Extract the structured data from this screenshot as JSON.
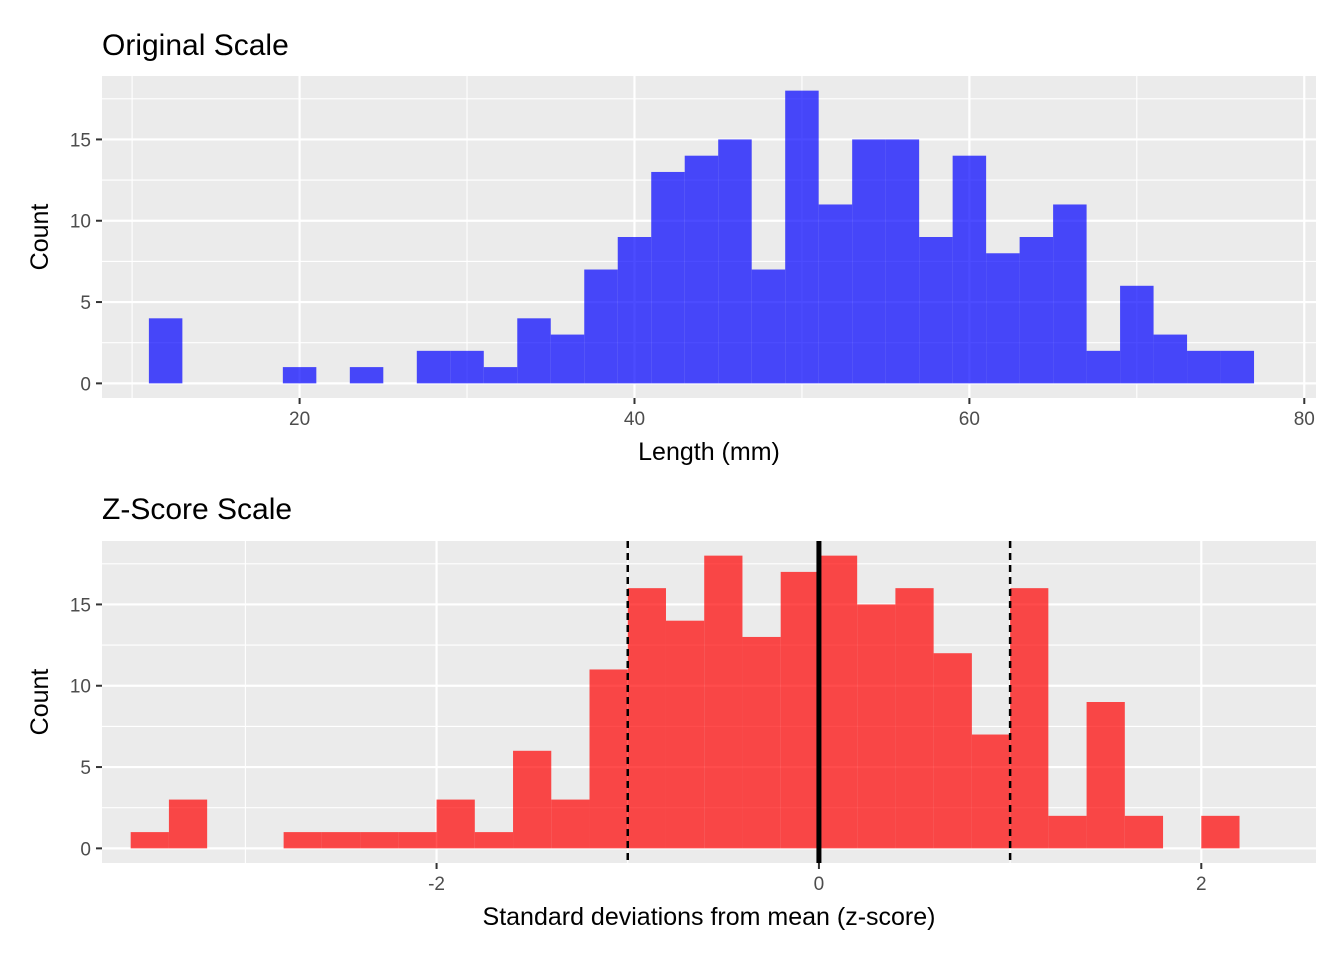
{
  "chart_data": [
    {
      "type": "bar",
      "subtype": "histogram",
      "title": "Original Scale",
      "xlabel": "Length (mm)",
      "ylabel": "Count",
      "color": "#0000FF",
      "opacity": 0.7,
      "bin_width": 2,
      "xlim": [
        8.2,
        80.7
      ],
      "ylim": [
        -0.9,
        18.9
      ],
      "x_ticks": [
        20,
        40,
        60,
        80
      ],
      "x_tick_labels": [
        "20",
        "40",
        "60",
        "80"
      ],
      "y_ticks": [
        0,
        5,
        10,
        15
      ],
      "y_tick_labels": [
        "0",
        "5",
        "10",
        "15"
      ],
      "bins": [
        {
          "x": 12,
          "count": 4
        },
        {
          "x": 20,
          "count": 1
        },
        {
          "x": 24,
          "count": 1
        },
        {
          "x": 28,
          "count": 2
        },
        {
          "x": 30,
          "count": 2
        },
        {
          "x": 32,
          "count": 1
        },
        {
          "x": 34,
          "count": 4
        },
        {
          "x": 36,
          "count": 3
        },
        {
          "x": 38,
          "count": 7
        },
        {
          "x": 40,
          "count": 9
        },
        {
          "x": 42,
          "count": 13
        },
        {
          "x": 44,
          "count": 14
        },
        {
          "x": 46,
          "count": 15
        },
        {
          "x": 48,
          "count": 7
        },
        {
          "x": 50,
          "count": 18
        },
        {
          "x": 52,
          "count": 11
        },
        {
          "x": 54,
          "count": 15
        },
        {
          "x": 56,
          "count": 15
        },
        {
          "x": 58,
          "count": 9
        },
        {
          "x": 60,
          "count": 14
        },
        {
          "x": 62,
          "count": 8
        },
        {
          "x": 64,
          "count": 9
        },
        {
          "x": 66,
          "count": 11
        },
        {
          "x": 68,
          "count": 2
        },
        {
          "x": 70,
          "count": 6
        },
        {
          "x": 72,
          "count": 3
        },
        {
          "x": 74,
          "count": 2
        },
        {
          "x": 76,
          "count": 2
        }
      ],
      "grid": true
    },
    {
      "type": "bar",
      "subtype": "histogram",
      "title": "Z-Score Scale",
      "xlabel": "Standard deviations from mean (z-score)",
      "ylabel": "Count",
      "color": "#FF0000",
      "opacity": 0.7,
      "bin_width": 0.2,
      "xlim": [
        -3.75,
        2.6
      ],
      "ylim": [
        -0.9,
        18.9
      ],
      "x_ticks": [
        -2,
        0,
        2
      ],
      "x_tick_labels": [
        "-2",
        "0",
        "2"
      ],
      "y_ticks": [
        0,
        5,
        10,
        15
      ],
      "y_tick_labels": [
        "0",
        "5",
        "10",
        "15"
      ],
      "bins": [
        {
          "x": -3.5,
          "count": 1
        },
        {
          "x": -3.3,
          "count": 3
        },
        {
          "x": -2.7,
          "count": 1
        },
        {
          "x": -2.5,
          "count": 1
        },
        {
          "x": -2.3,
          "count": 1
        },
        {
          "x": -2.1,
          "count": 1
        },
        {
          "x": -1.9,
          "count": 3
        },
        {
          "x": -1.7,
          "count": 1
        },
        {
          "x": -1.5,
          "count": 6
        },
        {
          "x": -1.3,
          "count": 3
        },
        {
          "x": -1.1,
          "count": 11
        },
        {
          "x": -0.9,
          "count": 16
        },
        {
          "x": -0.7,
          "count": 14
        },
        {
          "x": -0.5,
          "count": 18
        },
        {
          "x": -0.3,
          "count": 13
        },
        {
          "x": -0.1,
          "count": 17
        },
        {
          "x": 0.1,
          "count": 18
        },
        {
          "x": 0.3,
          "count": 15
        },
        {
          "x": 0.5,
          "count": 16
        },
        {
          "x": 0.7,
          "count": 12
        },
        {
          "x": 0.9,
          "count": 7
        },
        {
          "x": 1.1,
          "count": 16
        },
        {
          "x": 1.3,
          "count": 2
        },
        {
          "x": 1.5,
          "count": 9
        },
        {
          "x": 1.7,
          "count": 2
        },
        {
          "x": 2.1,
          "count": 2
        }
      ],
      "reference_lines": [
        {
          "x": -1,
          "style": "dashed",
          "color": "#000000"
        },
        {
          "x": 0,
          "style": "solid",
          "color": "#000000"
        },
        {
          "x": 1,
          "style": "dashed",
          "color": "#000000"
        }
      ],
      "grid": true
    }
  ]
}
